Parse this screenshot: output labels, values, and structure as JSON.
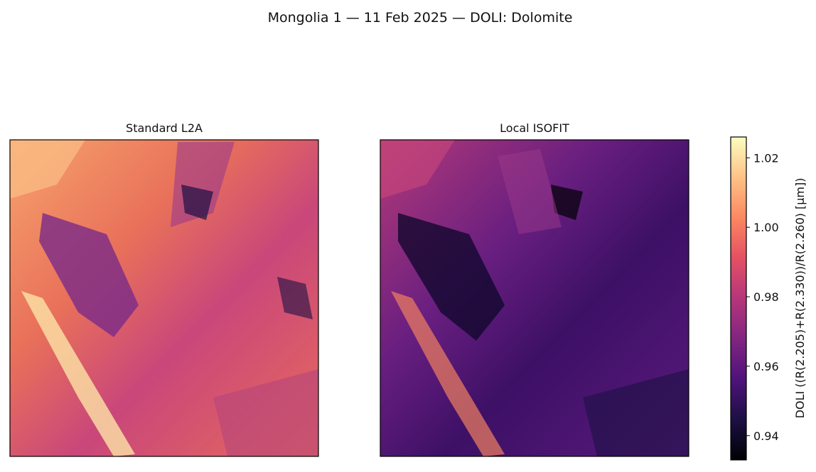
{
  "chart_data": {
    "type": "heatmap",
    "title": "Mongolia 1 — 11 Feb 2025 — DOLI: Dolomite",
    "panels": [
      {
        "title": "Standard L2A"
      },
      {
        "title": "Local ISOFIT"
      }
    ],
    "colorbar": {
      "label": "DOLI  ((R(2.205)+R(2.330))/R(2.260)  [µm])",
      "colormap": "magma",
      "lim": [
        0.933,
        1.026
      ],
      "ticks": [
        0.94,
        0.96,
        0.98,
        {
          "value": 1,
          "label": "1.00"
        },
        1.02
      ]
    }
  }
}
